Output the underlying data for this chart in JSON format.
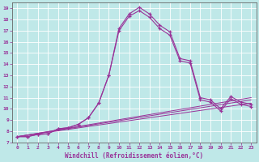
{
  "xlabel": "Windchill (Refroidissement éolien,°C)",
  "xlim": [
    -0.5,
    23.5
  ],
  "ylim": [
    7,
    19.5
  ],
  "xticks": [
    0,
    1,
    2,
    3,
    4,
    5,
    6,
    7,
    8,
    9,
    10,
    11,
    12,
    13,
    14,
    15,
    16,
    17,
    18,
    19,
    20,
    21,
    22,
    23
  ],
  "yticks": [
    7,
    8,
    9,
    10,
    11,
    12,
    13,
    14,
    15,
    16,
    17,
    18,
    19
  ],
  "bg_color": "#bfe8e8",
  "line_color": "#993399",
  "curve1_x": [
    0,
    1,
    2,
    3,
    4,
    5,
    6,
    7,
    8,
    9,
    10,
    11,
    12,
    13,
    14,
    15,
    16,
    17,
    18,
    19,
    20,
    21,
    22,
    23
  ],
  "curve1_y": [
    7.5,
    7.5,
    7.7,
    7.75,
    8.2,
    8.3,
    8.6,
    9.2,
    10.5,
    13.0,
    17.2,
    18.5,
    19.1,
    18.5,
    17.5,
    16.9,
    14.5,
    14.3,
    11.0,
    10.8,
    10.0,
    11.1,
    10.6,
    10.4
  ],
  "curve2_x": [
    0,
    1,
    2,
    3,
    4,
    5,
    6,
    7,
    8,
    9,
    10,
    11,
    12,
    13,
    14,
    15,
    16,
    17,
    18,
    19,
    20,
    21,
    22,
    23
  ],
  "curve2_y": [
    7.5,
    7.5,
    7.7,
    7.75,
    8.2,
    8.3,
    8.6,
    9.2,
    10.5,
    13.0,
    17.0,
    18.3,
    18.8,
    18.2,
    17.2,
    16.6,
    14.3,
    14.1,
    10.8,
    10.6,
    9.8,
    10.9,
    10.4,
    10.2
  ],
  "line1_x": [
    0,
    23
  ],
  "line1_y": [
    7.5,
    10.5
  ],
  "line2_x": [
    0,
    23
  ],
  "line2_y": [
    7.5,
    10.8
  ],
  "line3_x": [
    0,
    23
  ],
  "line3_y": [
    7.5,
    11.0
  ]
}
